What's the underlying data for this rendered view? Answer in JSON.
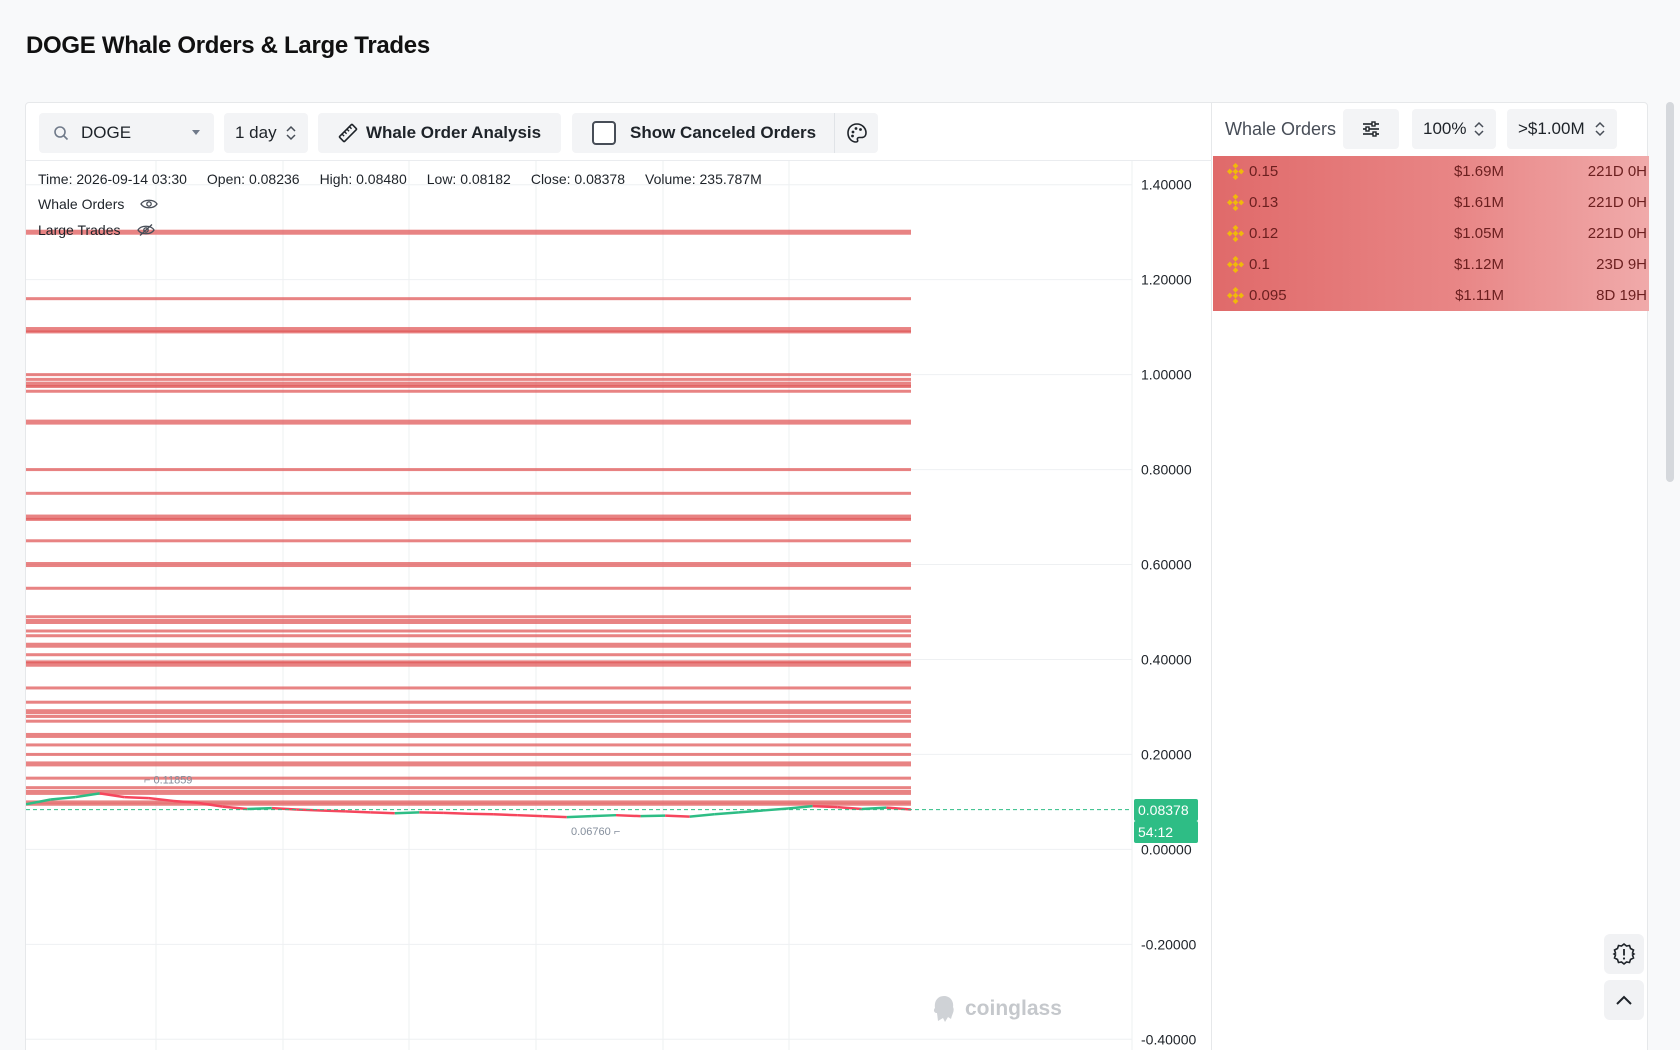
{
  "page": {
    "title": "DOGE Whale Orders & Large Trades"
  },
  "toolbar": {
    "symbol": "DOGE",
    "interval": "1 day",
    "analysis_label": "Whale Order Analysis",
    "canceled_label": "Show Canceled Orders"
  },
  "ohlc": {
    "time": "Time: 2026-09-14 03:30",
    "open": "Open: 0.08236",
    "high": "High: 0.08480",
    "low": "Low: 0.08182",
    "close": "Close: 0.08378",
    "volume": "Volume: 235.787M"
  },
  "legend": {
    "whale_orders": "Whale Orders",
    "large_trades": "Large Trades"
  },
  "chart": {
    "current_price": "0.08378",
    "countdown": "54:12",
    "high_marker": "0.11859",
    "low_marker": "0.06760",
    "watermark": "coinglass"
  },
  "side_panel": {
    "title": "Whale Orders",
    "depth": "100%",
    "min_value": ">$1.00M",
    "orders": [
      {
        "price": "0.15",
        "value": "$1.69M",
        "age": "221D 0H"
      },
      {
        "price": "0.13",
        "value": "$1.61M",
        "age": "221D 0H"
      },
      {
        "price": "0.12",
        "value": "$1.05M",
        "age": "221D 0H"
      },
      {
        "price": "0.1",
        "value": "$1.12M",
        "age": "23D 9H"
      },
      {
        "price": "0.095",
        "value": "$1.11M",
        "age": "8D 19H"
      }
    ]
  },
  "colors": {
    "ask": "#e05a5a",
    "up": "#2ebd85",
    "down": "#f6465d",
    "accent": "#f0b90b"
  },
  "icons": [
    "search-icon",
    "ruler-icon",
    "palette-icon",
    "eye-icon",
    "eye-off-icon",
    "sliders-icon",
    "binance-icon",
    "settings-badge-icon",
    "chevron-up-icon"
  ],
  "chart_data": {
    "type": "line",
    "y_ticks": [
      "1.40000",
      "1.20000",
      "1.00000",
      "0.80000",
      "0.60000",
      "0.40000",
      "0.20000",
      "0.00000",
      "-0.20000",
      "-0.40000"
    ],
    "ylim": [
      -0.45,
      1.45
    ],
    "whale_order_levels": [
      1.3,
      1.16,
      1.09,
      1.095,
      1.0,
      0.99,
      0.98,
      0.975,
      0.965,
      0.9,
      0.8,
      0.75,
      0.7,
      0.695,
      0.65,
      0.6,
      0.55,
      0.49,
      0.48,
      0.46,
      0.45,
      0.43,
      0.41,
      0.395,
      0.39,
      0.34,
      0.31,
      0.29,
      0.28,
      0.27,
      0.24,
      0.22,
      0.2,
      0.18,
      0.15,
      0.13,
      0.12,
      0.1,
      0.095
    ],
    "price_path": [
      0.095,
      0.105,
      0.11,
      0.118,
      0.11,
      0.108,
      0.102,
      0.098,
      0.09,
      0.085,
      0.087,
      0.084,
      0.082,
      0.08,
      0.078,
      0.076,
      0.078,
      0.077,
      0.075,
      0.074,
      0.072,
      0.07,
      0.068,
      0.07,
      0.072,
      0.07,
      0.071,
      0.069,
      0.074,
      0.078,
      0.082,
      0.086,
      0.091,
      0.089,
      0.085,
      0.088,
      0.084
    ],
    "current": 0.08378
  }
}
